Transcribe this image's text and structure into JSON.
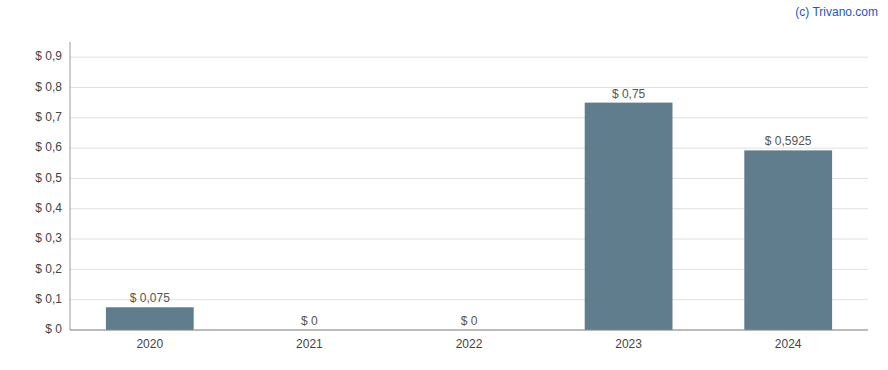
{
  "chart_data": {
    "type": "bar",
    "categories": [
      "2020",
      "2021",
      "2022",
      "2023",
      "2024"
    ],
    "values": [
      0.075,
      0,
      0,
      0.75,
      0.5925
    ],
    "value_labels": [
      "$ 0,075",
      "$ 0",
      "$ 0",
      "$ 0,75",
      "$ 0,5925"
    ],
    "color": "#5f7d8c",
    "ylim": [
      0,
      0.95
    ],
    "yticks": [
      {
        "value": 0.0,
        "label": "$ 0"
      },
      {
        "value": 0.1,
        "label": "$ 0,1"
      },
      {
        "value": 0.2,
        "label": "$ 0,2"
      },
      {
        "value": 0.3,
        "label": "$ 0,3"
      },
      {
        "value": 0.4,
        "label": "$ 0,4"
      },
      {
        "value": 0.5,
        "label": "$ 0,5"
      },
      {
        "value": 0.6,
        "label": "$ 0,6"
      },
      {
        "value": 0.7,
        "label": "$ 0,7"
      },
      {
        "value": 0.8,
        "label": "$ 0,8"
      },
      {
        "value": 0.9,
        "label": "$ 0,9"
      }
    ],
    "grid": true,
    "data_labels": true,
    "annotations": [
      {
        "text": "(c) Trivano.com",
        "color": "#2255cc"
      }
    ]
  }
}
